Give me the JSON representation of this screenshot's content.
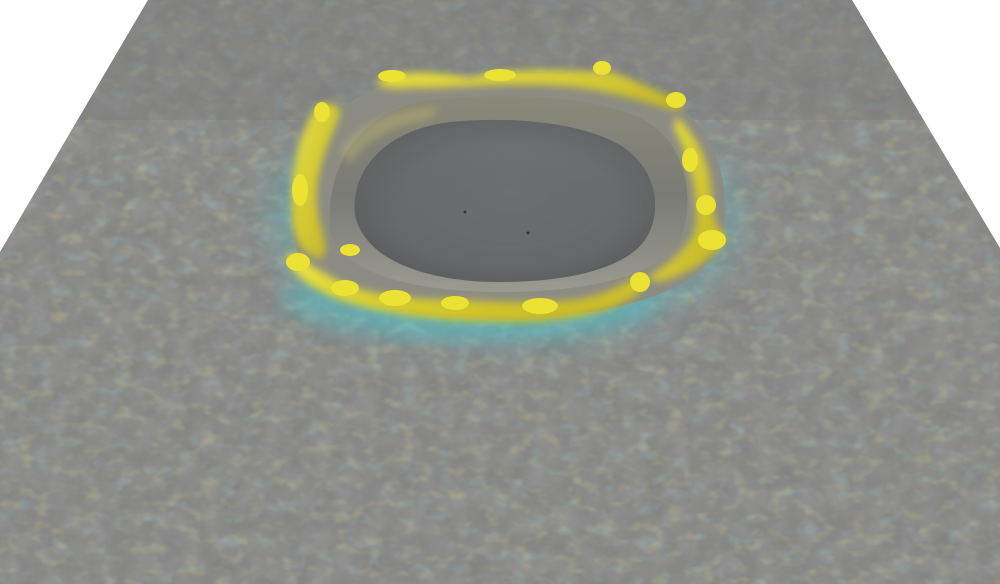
{
  "scene": {
    "subject": "crater-surface-render",
    "colors": {
      "background": "#ffffff",
      "surface": "#80807f",
      "surface_shadow": "#6d6d6d",
      "surface_light": "#8a8a88",
      "rim_highlight": "#e6dc2e",
      "rim_deep": "#c9b81f",
      "cyan_tint": "#4fc3cf",
      "pit_floor": "#6a6e70"
    }
  }
}
